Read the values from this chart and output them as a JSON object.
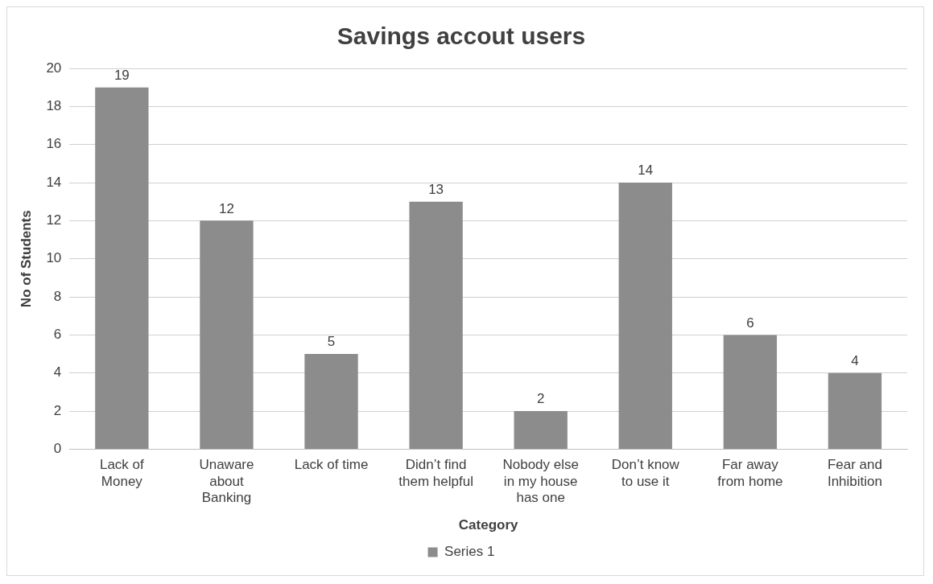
{
  "chart_data": {
    "type": "bar",
    "title": "Savings accout users",
    "xlabel": "Category",
    "ylabel": "No of Students",
    "categories": [
      "Lack of Money",
      "Unaware about Banking",
      "Lack of time",
      "Didn’t find them helpful",
      "Nobody else in my house has one",
      "Don’t know to use it",
      "Far away from home",
      "Fear and Inhibition"
    ],
    "series": [
      {
        "name": "Series 1",
        "color": "#8c8c8c",
        "values": [
          19,
          12,
          5,
          13,
          2,
          14,
          6,
          4
        ]
      }
    ],
    "ylim": [
      0,
      20
    ],
    "yticks": [
      0,
      2,
      4,
      6,
      8,
      10,
      12,
      14,
      16,
      18,
      20
    ],
    "grid": "y",
    "legend": "bottom",
    "data_labels": true
  }
}
